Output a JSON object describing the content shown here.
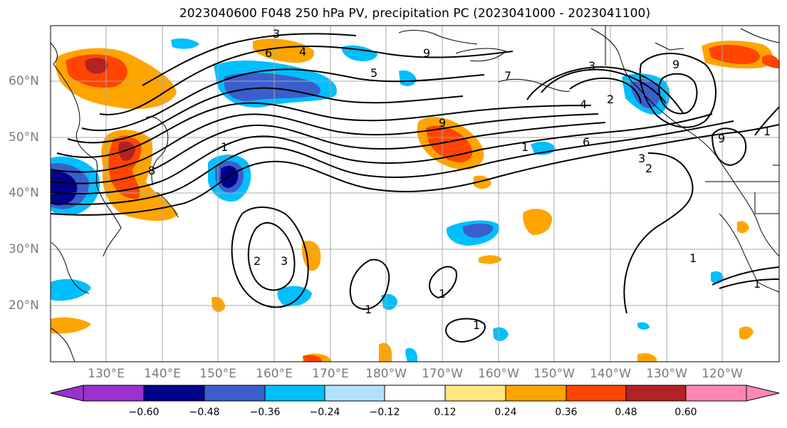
{
  "title": "2023040600 F048 250 hPa PV, precipitation PC (2023041000 - 2023041100)",
  "map": {
    "latitude_labels": [
      "60°N",
      "50°N",
      "40°N",
      "30°N",
      "20°N"
    ],
    "longitude_labels": [
      "130°E",
      "140°E",
      "150°E",
      "160°E",
      "170°E",
      "180°W",
      "170°W",
      "160°W",
      "150°W",
      "140°W",
      "130°W",
      "120°W"
    ],
    "pv_contour_labels": [
      "1",
      "2",
      "3",
      "4",
      "5",
      "6",
      "7",
      "8",
      "9"
    ]
  },
  "colorbar": {
    "tick_labels": [
      "−0.60",
      "−0.48",
      "−0.36",
      "−0.24",
      "−0.12",
      "0.12",
      "0.24",
      "0.36",
      "0.48",
      "0.60"
    ],
    "colors": [
      "#9932cc",
      "#00008b",
      "#3a5fcd",
      "#00bfff",
      "#b0e2ff",
      "#ffffff",
      "#ffe680",
      "#ffa500",
      "#ff4500",
      "#b22222",
      "#ff87b4"
    ]
  }
}
